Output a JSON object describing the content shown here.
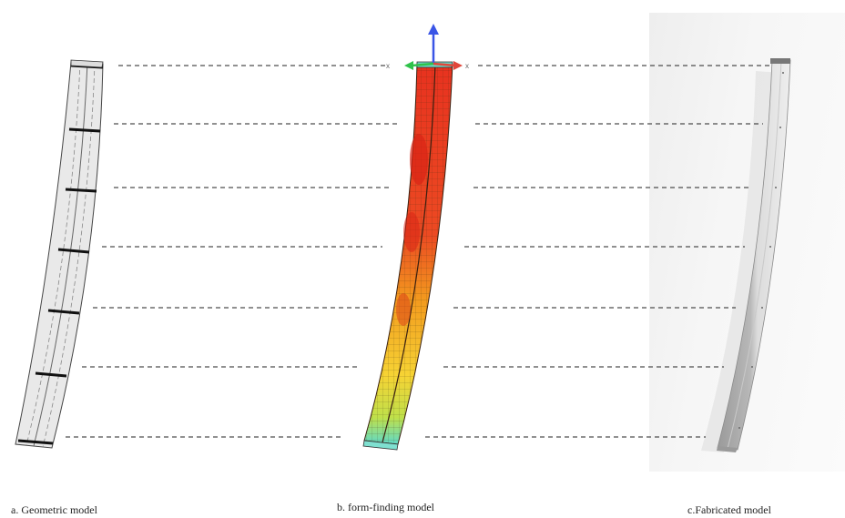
{
  "captions": {
    "geometric": "a. Geometric model",
    "form_finding": "b. form-finding model",
    "fabricated": "c.Fabricated model"
  },
  "axis_labels": {
    "x": "x"
  },
  "colors": {
    "guide_line": "#222222",
    "heat_hot": "#e8321f",
    "heat_warm": "#f39a1e",
    "heat_mid": "#f6d334",
    "heat_cool": "#8fdc6a",
    "heat_cold": "#5fd9c8",
    "axis_z": "#3a55e6",
    "axis_x": "#e0463a",
    "axis_y": "#2fc24a"
  }
}
